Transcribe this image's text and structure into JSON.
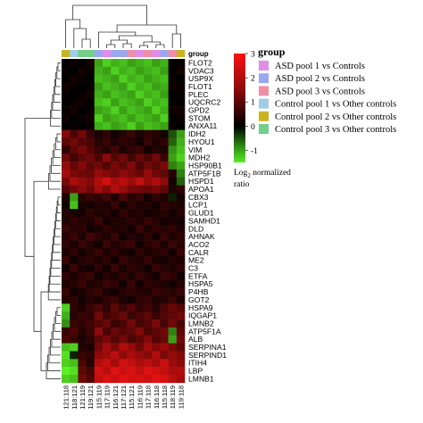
{
  "chart_data": {
    "type": "heatmap",
    "annotation_title": "group",
    "legend_title": "group",
    "groups": [
      {
        "label": "ASD pool 1 vs Controls",
        "color": "#e08ce8"
      },
      {
        "label": "ASD pool 2 vs Controls",
        "color": "#9aa8ef"
      },
      {
        "label": "ASD pool 3 vs Controls",
        "color": "#ef8fa6"
      },
      {
        "label": "Control pool 1 vs Other controls",
        "color": "#9fcde6"
      },
      {
        "label": "Control pool 2 vs Other controls",
        "color": "#c9b424"
      },
      {
        "label": "Control pool 3 vs Other controls",
        "color": "#73cf8a"
      }
    ],
    "columns": [
      "121:118",
      "118:121",
      "121:119",
      "119:121",
      "115:119",
      "117:119",
      "116:121",
      "117:121",
      "115:121",
      "116:119",
      "117:118",
      "116:118",
      "115:118",
      "118:119",
      "119:118"
    ],
    "column_groups": [
      4,
      3,
      5,
      5,
      1,
      0,
      1,
      1,
      2,
      0,
      2,
      0,
      1,
      2,
      4
    ],
    "rows": [
      "FLOT2",
      "VDAC3",
      "USP9X",
      "FLOT1",
      "PLEC",
      "UQCRC2",
      "GPD2",
      "STOM",
      "ANXA11",
      "IDH2",
      "HYOU1",
      "VIM",
      "MDH2",
      "HSP90B1",
      "ATP5F1B",
      "HSPD1",
      "APOA1",
      "CBX3",
      "LCP1",
      "GLUD1",
      "SAMHD1",
      "DLD",
      "AHNAK",
      "ACO2",
      "CALR",
      "ME2",
      "C3",
      "ETFA",
      "HSPA5",
      "P4HB",
      "GOT2",
      "HSPA9",
      "IQGAP1",
      "LMNB2",
      "ATP5F1A",
      "ALB",
      "SERPINA1",
      "SERPIND1",
      "ITIH4",
      "LBP",
      "LMNB1"
    ],
    "values": [
      [
        0.0,
        0.1,
        0.0,
        0.2,
        -1.0,
        -1.3,
        -1.1,
        -1.2,
        -1.0,
        -1.1,
        -1.2,
        -1.0,
        -1.1,
        0.1,
        0.1
      ],
      [
        0.1,
        0.0,
        0.2,
        0.1,
        -1.1,
        -1.0,
        -1.3,
        -1.1,
        -1.2,
        -1.0,
        -1.1,
        -1.2,
        -1.0,
        0.0,
        0.2
      ],
      [
        0.0,
        0.2,
        0.1,
        0.0,
        -1.2,
        -1.1,
        -1.0,
        -1.3,
        -1.1,
        -1.2,
        -1.0,
        -1.1,
        -1.2,
        0.1,
        0.0
      ],
      [
        0.2,
        0.1,
        0.0,
        0.1,
        -1.0,
        -1.2,
        -1.1,
        -1.0,
        -1.3,
        -1.1,
        -1.2,
        -1.0,
        -1.1,
        0.2,
        0.1
      ],
      [
        0.1,
        0.0,
        0.1,
        0.2,
        -1.1,
        -1.0,
        -1.2,
        -1.1,
        -1.0,
        -1.3,
        -1.1,
        -1.2,
        -1.0,
        0.0,
        0.1
      ],
      [
        0.0,
        0.1,
        0.2,
        0.0,
        -1.2,
        -1.3,
        -1.0,
        -1.2,
        -1.1,
        -1.0,
        -1.3,
        -1.1,
        -1.2,
        0.1,
        0.0
      ],
      [
        0.1,
        0.2,
        0.0,
        0.1,
        -1.0,
        -1.1,
        -1.3,
        -1.0,
        -1.2,
        -1.1,
        -1.0,
        -1.3,
        -1.1,
        0.2,
        0.2
      ],
      [
        0.2,
        0.0,
        0.1,
        0.2,
        -1.3,
        -1.0,
        -1.1,
        -1.2,
        -1.0,
        -1.2,
        -1.1,
        -1.0,
        -1.3,
        0.0,
        0.1
      ],
      [
        0.0,
        0.1,
        0.0,
        0.1,
        -1.1,
        -1.2,
        -1.0,
        -1.1,
        -1.3,
        -1.0,
        -1.2,
        -1.1,
        -1.0,
        0.1,
        0.0
      ],
      [
        1.4,
        0.8,
        1.2,
        0.6,
        0.3,
        0.5,
        0.2,
        0.4,
        0.6,
        0.3,
        0.5,
        0.4,
        0.2,
        -0.5,
        -1.0
      ],
      [
        1.0,
        1.2,
        0.9,
        0.8,
        0.4,
        0.6,
        0.3,
        0.5,
        0.4,
        0.2,
        0.6,
        0.3,
        0.5,
        -0.6,
        -1.1
      ],
      [
        0.5,
        1.0,
        1.3,
        0.9,
        0.6,
        0.4,
        0.7,
        0.3,
        0.5,
        0.6,
        0.2,
        0.4,
        0.3,
        -0.9,
        -1.2
      ],
      [
        1.2,
        0.7,
        1.0,
        1.2,
        0.8,
        1.5,
        0.9,
        1.2,
        0.7,
        1.1,
        0.8,
        1.2,
        0.6,
        -1.0,
        -1.3
      ],
      [
        1.6,
        1.1,
        1.4,
        1.0,
        1.2,
        0.9,
        1.3,
        1.0,
        1.4,
        0.8,
        1.2,
        1.0,
        1.3,
        -0.8,
        -1.0
      ],
      [
        1.8,
        1.3,
        1.2,
        1.1,
        1.6,
        1.4,
        1.2,
        1.5,
        1.3,
        1.1,
        1.6,
        1.2,
        1.0,
        0.4,
        -0.8
      ],
      [
        1.3,
        1.9,
        1.6,
        1.4,
        2.0,
        2.4,
        1.8,
        2.1,
        1.7,
        2.2,
        1.6,
        1.9,
        1.5,
        0.2,
        -0.6
      ],
      [
        0.9,
        1.2,
        1.5,
        1.2,
        1.8,
        1.4,
        2.0,
        1.6,
        1.3,
        1.2,
        1.1,
        1.3,
        1.0,
        0.3,
        0.5
      ],
      [
        0.3,
        -1.0,
        0.4,
        0.6,
        0.5,
        0.7,
        0.3,
        0.8,
        0.4,
        0.6,
        0.2,
        0.5,
        0.3,
        -0.2,
        0.2
      ],
      [
        0.2,
        -1.2,
        0.3,
        0.2,
        0.4,
        0.3,
        0.6,
        0.2,
        0.5,
        0.3,
        0.4,
        0.2,
        0.5,
        0.4,
        0.3
      ],
      [
        0.4,
        0.3,
        0.2,
        0.5,
        0.3,
        0.4,
        0.2,
        0.5,
        0.3,
        0.4,
        0.2,
        0.3,
        0.4,
        0.2,
        0.4
      ],
      [
        0.3,
        0.5,
        0.4,
        0.3,
        0.6,
        0.2,
        0.4,
        0.3,
        0.5,
        0.3,
        0.6,
        0.4,
        0.2,
        0.3,
        0.2
      ],
      [
        0.6,
        0.4,
        0.5,
        0.2,
        0.3,
        0.5,
        0.3,
        0.4,
        0.2,
        0.6,
        0.3,
        0.5,
        0.4,
        0.5,
        0.3
      ],
      [
        0.4,
        0.6,
        0.3,
        0.7,
        0.5,
        0.3,
        0.6,
        0.2,
        0.4,
        0.3,
        0.5,
        0.2,
        0.6,
        0.3,
        0.5
      ],
      [
        0.5,
        0.3,
        0.6,
        0.4,
        0.2,
        0.6,
        0.3,
        0.5,
        0.6,
        0.2,
        0.4,
        0.6,
        0.3,
        0.6,
        0.4
      ],
      [
        0.3,
        0.5,
        0.2,
        0.4,
        0.6,
        0.3,
        0.5,
        0.3,
        0.2,
        0.5,
        0.3,
        0.4,
        0.5,
        0.2,
        0.6
      ],
      [
        0.6,
        0.2,
        0.4,
        0.5,
        0.3,
        0.5,
        0.2,
        0.6,
        0.4,
        0.3,
        0.6,
        0.3,
        0.2,
        0.4,
        0.3
      ],
      [
        0.2,
        0.6,
        0.3,
        0.2,
        0.5,
        0.2,
        0.6,
        0.3,
        0.5,
        0.4,
        0.2,
        0.6,
        0.4,
        0.3,
        0.5
      ],
      [
        0.5,
        0.3,
        0.5,
        0.6,
        0.2,
        0.4,
        0.3,
        0.5,
        0.3,
        0.6,
        0.4,
        0.2,
        0.6,
        0.5,
        0.2
      ],
      [
        0.3,
        0.4,
        0.6,
        0.3,
        0.4,
        0.6,
        0.5,
        0.2,
        0.6,
        0.2,
        0.5,
        0.4,
        0.3,
        0.2,
        0.4
      ],
      [
        0.6,
        0.2,
        0.3,
        0.5,
        0.6,
        0.3,
        0.2,
        0.4,
        0.5,
        0.4,
        0.3,
        0.6,
        0.5,
        0.4,
        0.6
      ],
      [
        0.4,
        0.5,
        0.2,
        0.4,
        0.3,
        0.5,
        0.6,
        0.3,
        0.2,
        0.5,
        0.6,
        0.3,
        0.4,
        0.6,
        0.3
      ],
      [
        -1.3,
        0.5,
        0.3,
        0.6,
        0.8,
        0.5,
        1.0,
        0.6,
        0.9,
        0.5,
        0.7,
        0.4,
        0.8,
        1.1,
        0.9
      ],
      [
        -1.1,
        0.4,
        0.6,
        0.5,
        1.2,
        0.7,
        0.9,
        1.1,
        0.6,
        0.8,
        1.0,
        0.6,
        0.9,
        1.0,
        1.2
      ],
      [
        -0.9,
        0.6,
        0.5,
        0.7,
        0.9,
        1.1,
        0.6,
        0.8,
        1.2,
        0.7,
        0.9,
        1.3,
        0.7,
        1.2,
        0.8
      ],
      [
        0.6,
        0.8,
        0.4,
        0.6,
        1.5,
        0.8,
        1.1,
        0.9,
        1.0,
        1.4,
        0.8,
        1.0,
        1.2,
        -0.8,
        1.0
      ],
      [
        0.8,
        0.6,
        0.3,
        0.5,
        1.0,
        1.3,
        0.9,
        1.2,
        0.8,
        1.0,
        1.4,
        0.9,
        1.1,
        -1.0,
        1.2
      ],
      [
        -1.2,
        -1.3,
        0.4,
        0.3,
        1.2,
        1.8,
        1.3,
        2.0,
        1.6,
        1.2,
        1.8,
        1.4,
        1.7,
        1.3,
        1.0
      ],
      [
        -1.4,
        -0.2,
        0.6,
        0.5,
        1.5,
        1.7,
        2.1,
        1.5,
        1.9,
        1.6,
        1.4,
        2.0,
        1.3,
        1.6,
        1.4
      ],
      [
        -1.3,
        -1.2,
        0.8,
        0.4,
        2.0,
        2.3,
        1.8,
        2.4,
        2.2,
        1.9,
        2.1,
        1.8,
        2.3,
        1.7,
        1.5
      ],
      [
        -1.5,
        -1.4,
        1.0,
        0.7,
        2.4,
        2.1,
        2.6,
        2.3,
        2.5,
        2.2,
        2.6,
        2.4,
        2.2,
        1.9,
        2.0
      ],
      [
        -1.3,
        -1.2,
        1.2,
        0.9,
        2.2,
        2.5,
        2.3,
        2.6,
        2.4,
        2.5,
        2.3,
        2.6,
        2.5,
        2.1,
        1.8
      ]
    ],
    "scale": {
      "min": -1.5,
      "max": 3,
      "ticks": [
        3,
        2,
        1,
        0,
        -1
      ],
      "label_line1": "Log",
      "label_sub": "2",
      "label_line1_rest": " normalized",
      "label_line2": "ratio"
    }
  }
}
